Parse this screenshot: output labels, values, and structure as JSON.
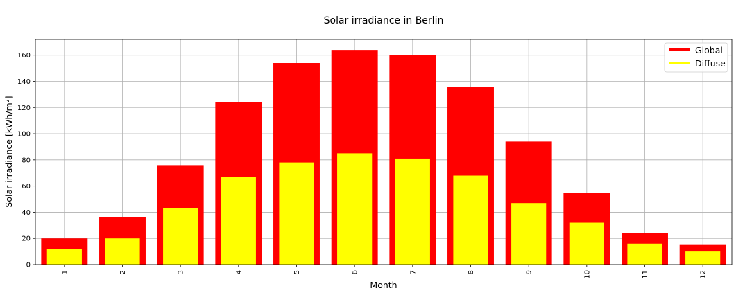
{
  "chart_data": {
    "type": "bar",
    "title": "Solar irradiance in Berlin",
    "xlabel": "Month",
    "ylabel": "Solar irradiance [kWh/m²]",
    "categories": [
      "1",
      "2",
      "3",
      "4",
      "5",
      "6",
      "7",
      "8",
      "9",
      "10",
      "11",
      "12"
    ],
    "series": [
      {
        "name": "Global",
        "color": "#ff0000",
        "values": [
          20,
          36,
          76,
          124,
          154,
          164,
          160,
          136,
          94,
          55,
          24,
          15
        ]
      },
      {
        "name": "Diffuse",
        "color": "#ffff00",
        "values": [
          12,
          20,
          43,
          67,
          78,
          85,
          81,
          68,
          47,
          32,
          16,
          10
        ]
      }
    ],
    "ylim": [
      0,
      172
    ],
    "yticks": [
      0,
      20,
      40,
      60,
      80,
      100,
      120,
      140,
      160
    ],
    "grid": true,
    "legend_position": "top-right",
    "tick_label_rotation": "vertical"
  }
}
